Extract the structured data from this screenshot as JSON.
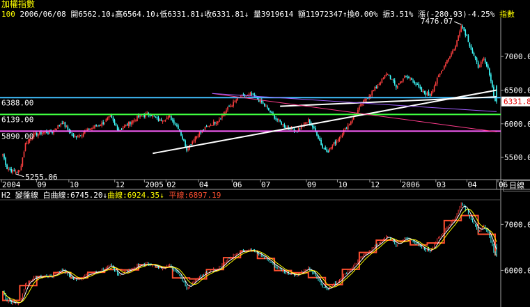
{
  "window_title": "加權指數",
  "info_bar": {
    "period": "100",
    "date": "2006/06/08",
    "open": "開6562.10↓",
    "high": "高6564.10↓",
    "low": "低6331.81↓",
    "close": "收6331.81↓",
    "volume": "量3919614",
    "amount": "額11972347↑",
    "turnover": "換0.00%",
    "amplitude": "振3.51%",
    "change": "漲(-280.93)-4.25%",
    "end_label": "指數"
  },
  "lower_info": {
    "label": "H2",
    "name": "變盤線",
    "white_line": "白曲線:6745.20↓",
    "yellow_line": "曲線:6924.35↓",
    "flat_line": "平線:6897.19"
  },
  "period_button": "日線",
  "colors": {
    "background": "#000000",
    "up": "#ff4040",
    "down": "#40ffff",
    "cyan_line": "#40c0ff",
    "green_line": "#40ff40",
    "magenta_line": "#ff60ff",
    "trend_white": "#ffffff",
    "trend_pink": "#ff3c8c",
    "step": "#ff5030",
    "axis_text": "#ffffff",
    "yellow": "#ffff00"
  },
  "chart_data": [
    {
      "type": "candlestick",
      "title": "加權指數",
      "y_ticks": [
        5500,
        6000,
        6500,
        7000
      ],
      "y_tick_labels": [
        "5500.0",
        "6000.0",
        "6500.0",
        "7000.0"
      ],
      "ylim": [
        5170,
        7550
      ],
      "x_tick_labels": [
        "2004",
        "09",
        "10",
        "12",
        "2005",
        "02",
        "04",
        "06",
        "07",
        "09",
        "10",
        "12",
        "2006",
        "03",
        "04",
        "06"
      ],
      "horizontal_lines": [
        {
          "label": "6388.00",
          "value": 6388,
          "color": "cyan"
        },
        {
          "label": "6139.00",
          "value": 6139,
          "color": "green"
        },
        {
          "label": "5890.00",
          "value": 5890,
          "color": "magenta"
        }
      ],
      "annotations": [
        {
          "text": "7476.07",
          "value": 7476.07
        },
        {
          "text": "5255.06",
          "value": 5255.06
        }
      ],
      "last_price_label": "6331.8",
      "close_anchors": [
        [
          0,
          5550
        ],
        [
          3,
          5340
        ],
        [
          8,
          5290
        ],
        [
          12,
          5300
        ],
        [
          16,
          5700
        ],
        [
          21,
          5830
        ],
        [
          28,
          5870
        ],
        [
          35,
          5880
        ],
        [
          42,
          6030
        ],
        [
          50,
          5800
        ],
        [
          56,
          5850
        ],
        [
          62,
          5930
        ],
        [
          70,
          6000
        ],
        [
          76,
          6100
        ],
        [
          82,
          5900
        ],
        [
          90,
          6020
        ],
        [
          96,
          6100
        ],
        [
          104,
          6150
        ],
        [
          110,
          6050
        ],
        [
          118,
          6100
        ],
        [
          124,
          5950
        ],
        [
          130,
          5620
        ],
        [
          136,
          5800
        ],
        [
          144,
          5950
        ],
        [
          152,
          6050
        ],
        [
          160,
          6250
        ],
        [
          168,
          6400
        ],
        [
          176,
          6430
        ],
        [
          184,
          6300
        ],
        [
          192,
          6100
        ],
        [
          200,
          5950
        ],
        [
          208,
          5900
        ],
        [
          216,
          6050
        ],
        [
          222,
          5850
        ],
        [
          226,
          5650
        ],
        [
          230,
          5600
        ],
        [
          236,
          5750
        ],
        [
          242,
          5920
        ],
        [
          248,
          6100
        ],
        [
          254,
          6300
        ],
        [
          260,
          6450
        ],
        [
          266,
          6600
        ],
        [
          272,
          6750
        ],
        [
          278,
          6550
        ],
        [
          284,
          6700
        ],
        [
          290,
          6650
        ],
        [
          296,
          6480
        ],
        [
          302,
          6430
        ],
        [
          308,
          6700
        ],
        [
          314,
          6950
        ],
        [
          320,
          7150
        ],
        [
          324,
          7476
        ],
        [
          328,
          7300
        ],
        [
          332,
          7050
        ],
        [
          336,
          6850
        ],
        [
          340,
          6950
        ],
        [
          344,
          6750
        ],
        [
          348,
          6331
        ]
      ],
      "candle_count": 350
    },
    {
      "type": "line",
      "title": "變盤線",
      "y_ticks": [
        6000,
        7000
      ],
      "y_tick_labels": [
        "6000.0",
        "7000.0"
      ],
      "ylim": [
        5280,
        7520
      ],
      "series": [
        {
          "name": "白曲線",
          "last": 6745.2
        },
        {
          "name": "曲線",
          "last": 6924.35
        },
        {
          "name": "平線",
          "last": 6897.19
        }
      ]
    }
  ]
}
